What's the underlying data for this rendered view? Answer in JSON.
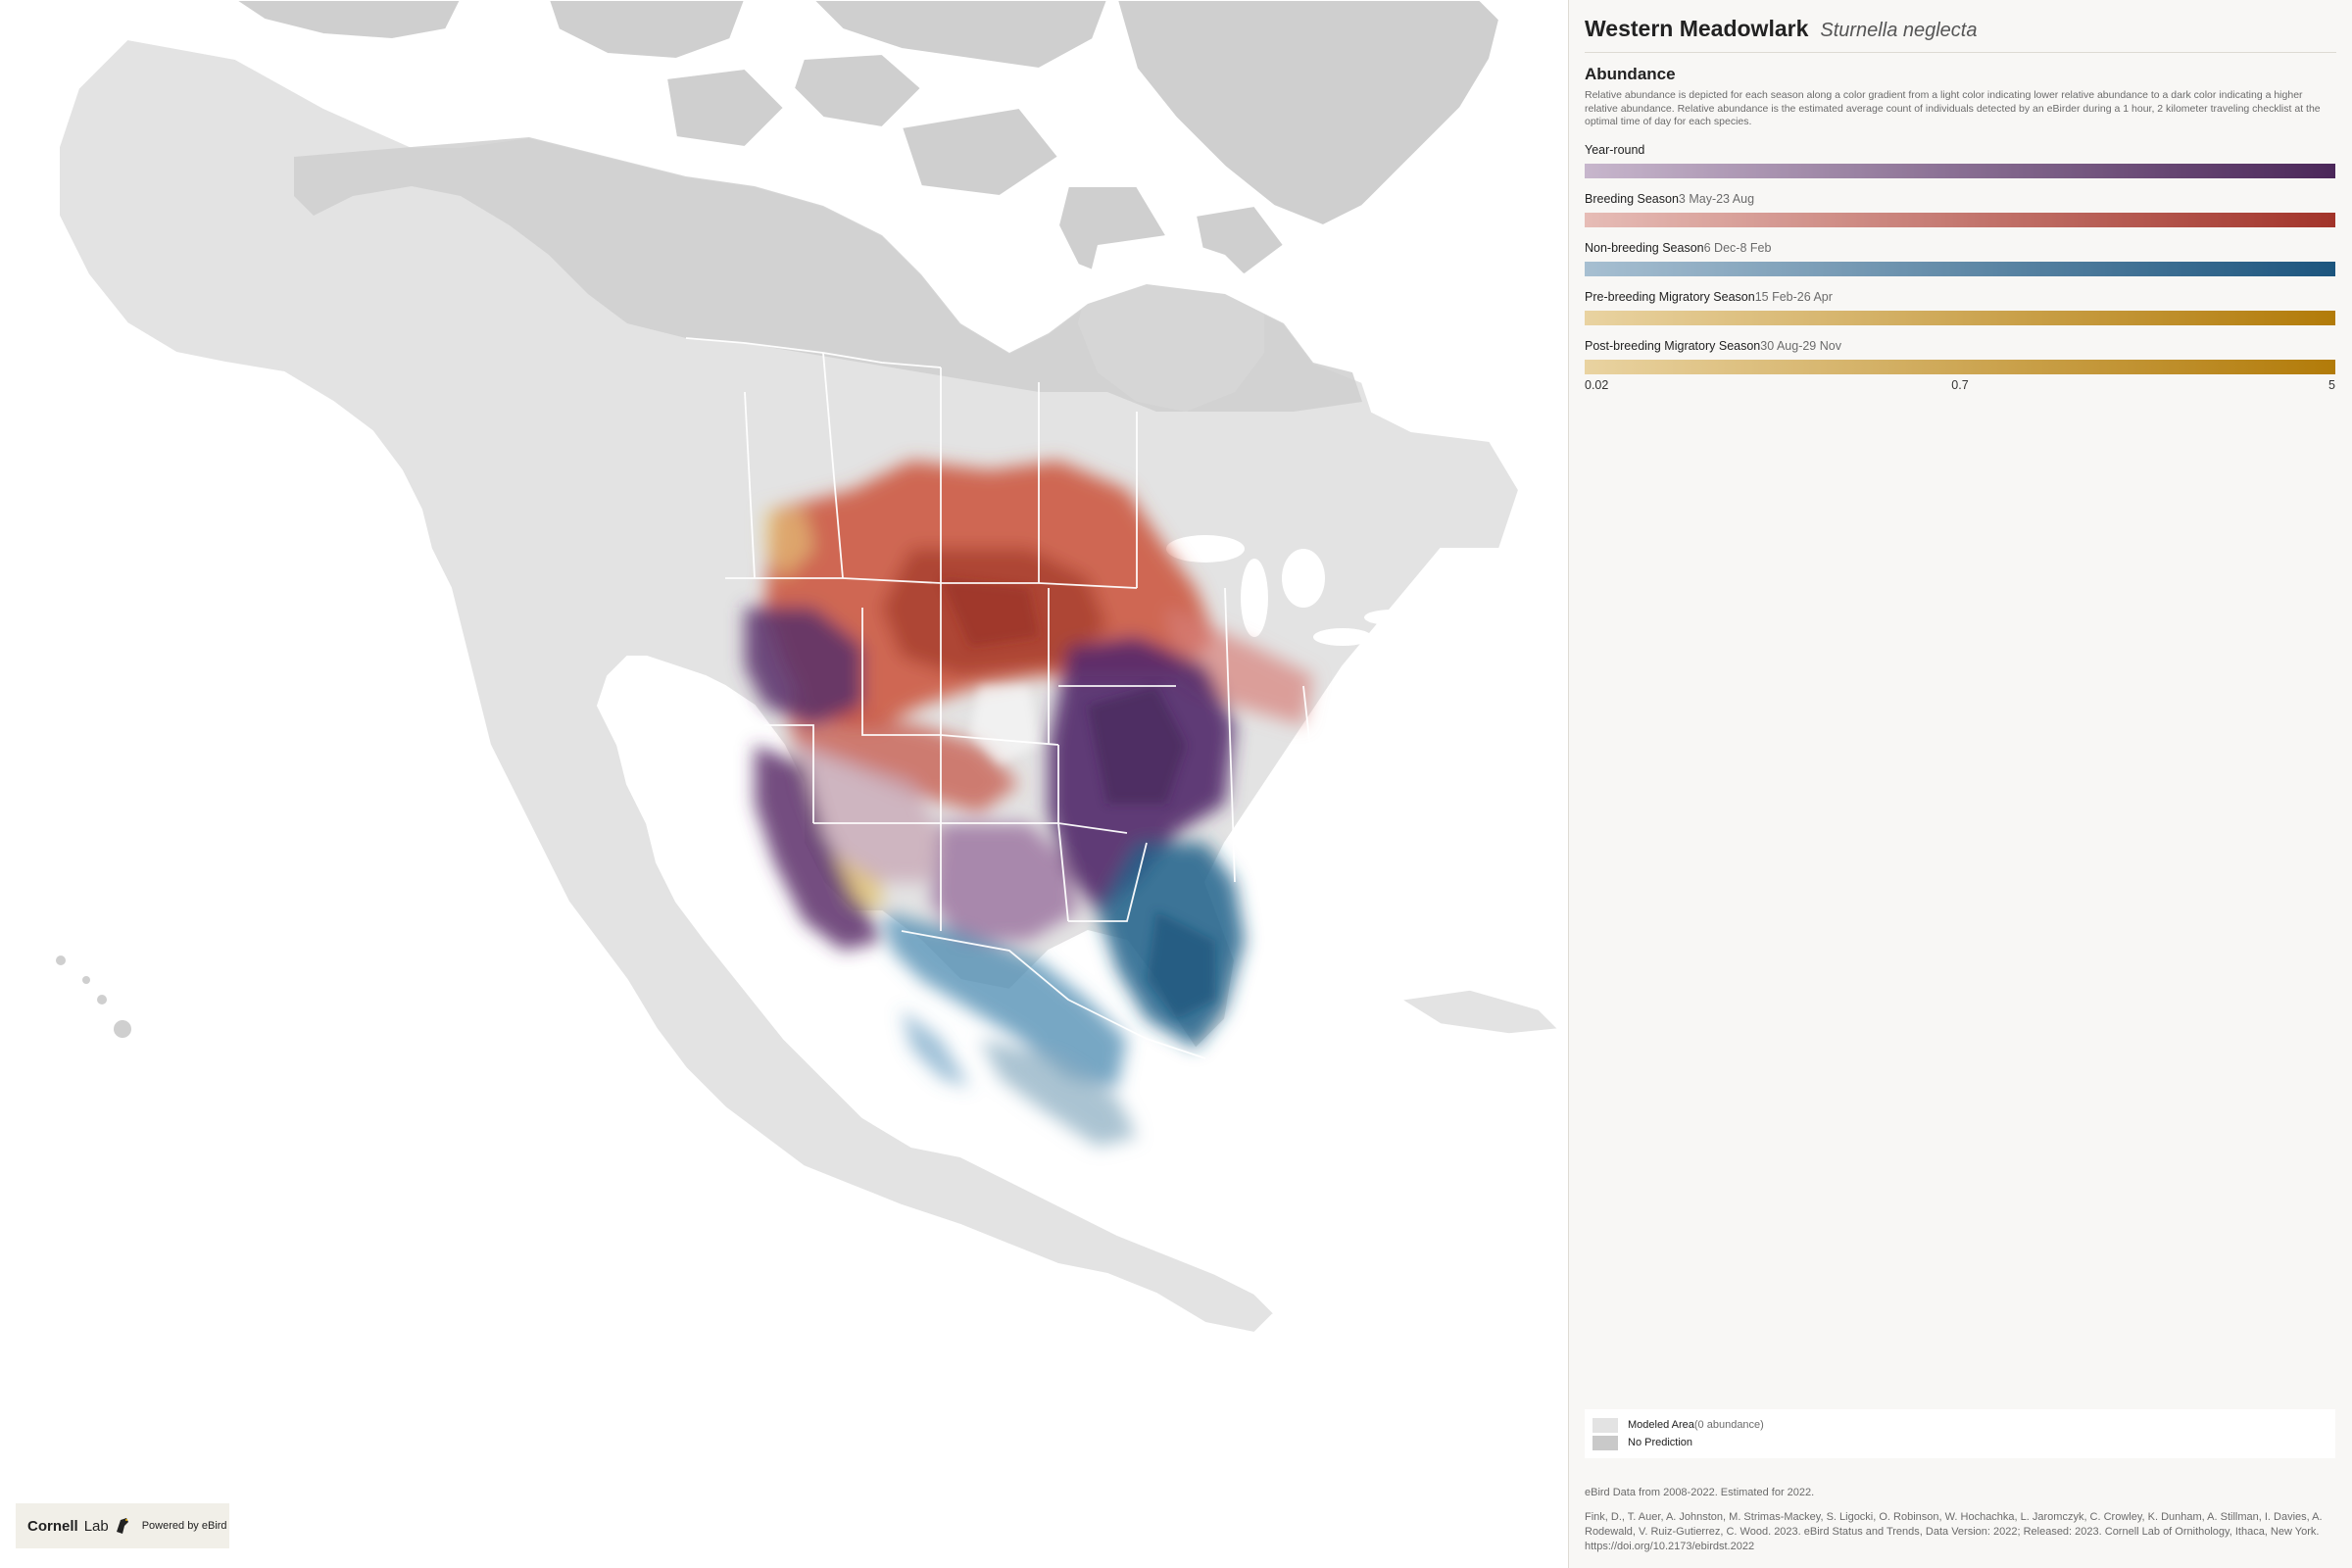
{
  "header": {
    "common_name": "Western Meadowlark",
    "scientific_name": "Sturnella neglecta"
  },
  "abundance": {
    "title": "Abundance",
    "description": "Relative abundance is depicted for each season along a color gradient from a light color indicating lower relative abundance to a dark color indicating a higher relative abundance. Relative abundance is the estimated average count of individuals detected by an eBirder during a 1 hour, 2 kilometer traveling checklist at the optimal time of day for each species.",
    "seasons": [
      {
        "label": "Year-round",
        "dates": "",
        "color_light": "#c7b6cc",
        "color_dark": "#4b2759"
      },
      {
        "label": "Breeding Season",
        "dates": "3 May-23 Aug",
        "color_light": "#e6bcb6",
        "color_dark": "#a2342a"
      },
      {
        "label": "Non-breeding Season",
        "dates": "6 Dec-8 Feb",
        "color_light": "#a7bfd1",
        "color_dark": "#1c557e"
      },
      {
        "label": "Pre-breeding Migratory Season",
        "dates": "15 Feb-26 Apr",
        "color_light": "#e9d3a1",
        "color_dark": "#b27b09"
      },
      {
        "label": "Post-breeding Migratory Season",
        "dates": "30 Aug-29 Nov",
        "color_light": "#e9d3a1",
        "color_dark": "#b27b09"
      }
    ],
    "scale": {
      "min": "0.02",
      "mid": "0.7",
      "max": "5"
    }
  },
  "modeled_legend": {
    "modeled_label": "Modeled Area",
    "modeled_sub": "(0 abundance)",
    "modeled_color": "#e3e3e3",
    "no_prediction_label": "No Prediction",
    "no_prediction_color": "#c9c9c9"
  },
  "footer": {
    "data_line": "eBird Data from 2008-2022. Estimated for 2022.",
    "citation": "Fink, D., T. Auer, A. Johnston, M. Strimas-Mackey, S. Ligocki, O. Robinson, W. Hochachka, L. Jaromczyk, C. Crowley, K. Dunham, A. Stillman, I. Davies, A. Rodewald, V. Ruiz-Gutierrez, C. Wood. 2023. eBird Status and Trends, Data Version: 2022; Released: 2023. Cornell Lab of Ornithology, Ithaca, New York. https://doi.org/10.2173/ebirdst.2022"
  },
  "logo": {
    "cornell": "Cornell",
    "lab": "Lab",
    "powered": "Powered by eBird"
  }
}
